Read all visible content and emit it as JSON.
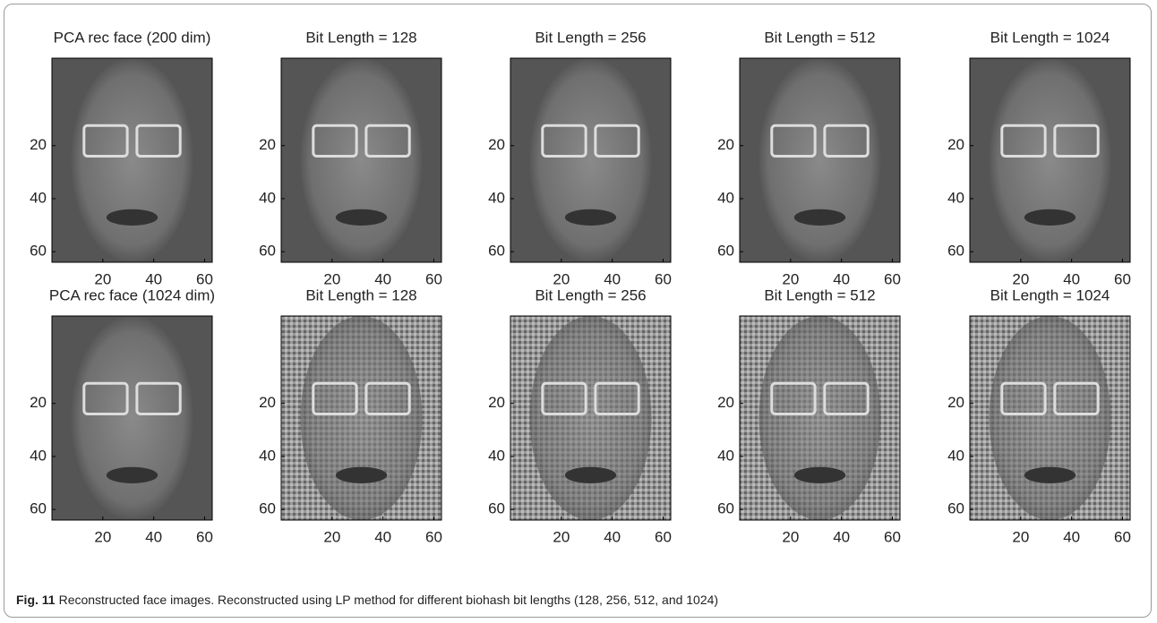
{
  "figure": {
    "xlim": [
      0,
      63
    ],
    "ylim": [
      -13,
      64
    ],
    "xticks": [
      20,
      40,
      60
    ],
    "yticks": [
      20,
      40,
      60
    ],
    "rows": [
      {
        "panels": [
          {
            "title": "PCA rec face (200 dim)"
          },
          {
            "title": "Bit Length = 128"
          },
          {
            "title": "Bit Length = 256"
          },
          {
            "title": "Bit Length = 512"
          },
          {
            "title": "Bit Length = 1024"
          }
        ]
      },
      {
        "panels": [
          {
            "title": "PCA rec face (1024 dim)"
          },
          {
            "title": "Bit Length = 128"
          },
          {
            "title": "Bit Length = 256"
          },
          {
            "title": "Bit Length = 512"
          },
          {
            "title": "Bit Length = 1024"
          }
        ]
      }
    ]
  },
  "caption": {
    "label": "Fig. 11",
    "text": "Reconstructed face images. Reconstructed using LP method for different biohash bit lengths (128, 256, 512, and 1024)"
  }
}
